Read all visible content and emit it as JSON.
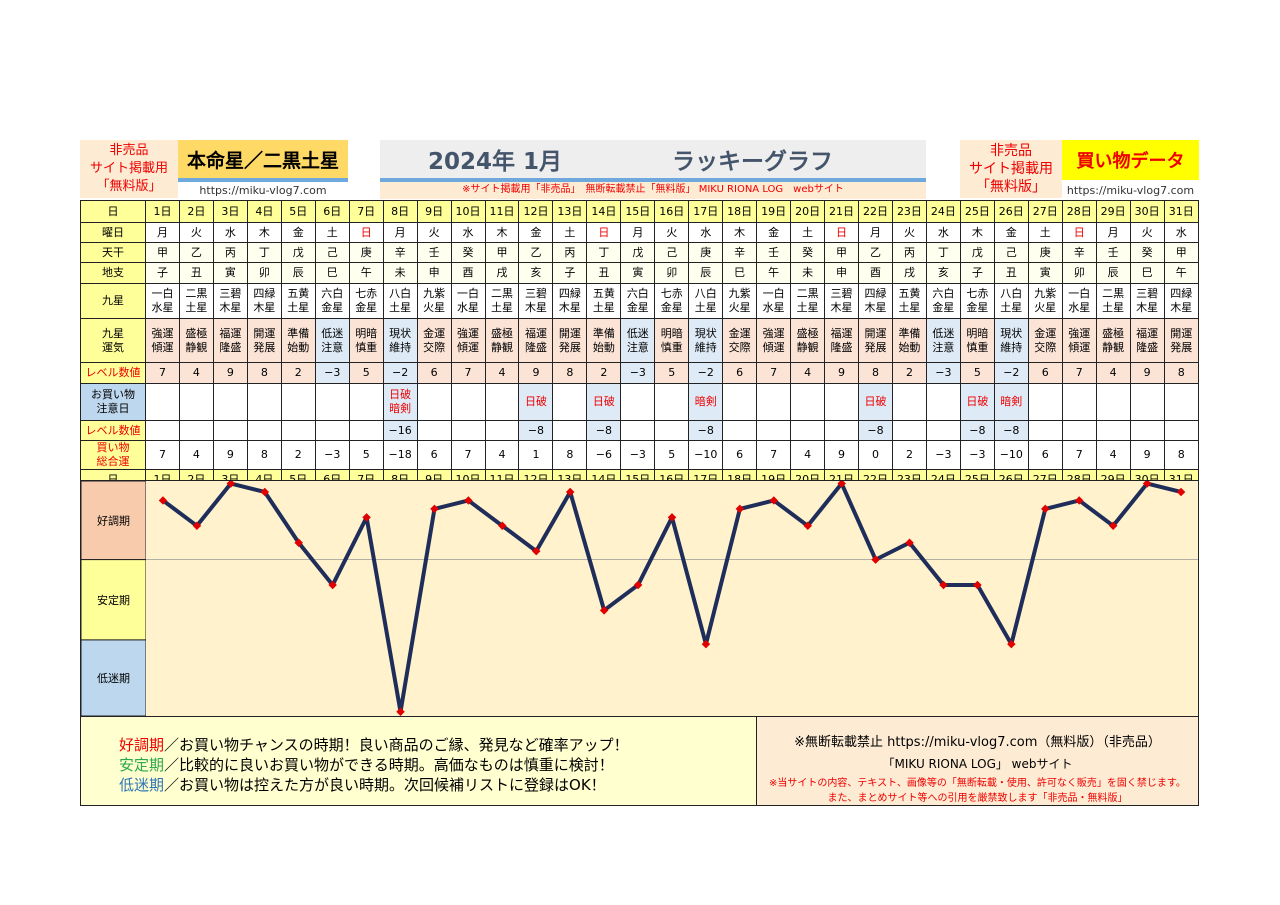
{
  "header": {
    "left_badge": [
      "非売品",
      "サイト掲載用",
      "「無料版」"
    ],
    "honmei": "本命星／二黒土星",
    "url": "https://miku-vlog7.com",
    "month": "2024年 1月",
    "graph_title": "ラッキーグラフ",
    "notice": "※サイト掲載用「非売品」　無断転載禁止「無料版」 MIKU RIONA LOG　webサイト",
    "right_badge": [
      "非売品",
      "サイト掲載用",
      "「無料版」"
    ],
    "shop_title": "買い物データ",
    "url_right": "https://miku-vlog7.com"
  },
  "labels": {
    "day": "日",
    "weekday": "曜日",
    "tenkan": "天干",
    "chishi": "地支",
    "kyusei": "九星",
    "unki": "九星\n運気",
    "level": "レベル数値",
    "caution": "お買い物\n注意日",
    "level2": "レベル数値",
    "total": "買い物\n総合運",
    "good": "好調期",
    "stable": "安定期",
    "low": "低迷期"
  },
  "days": [
    "1日",
    "2日",
    "3日",
    "4日",
    "5日",
    "6日",
    "7日",
    "8日",
    "9日",
    "10日",
    "11日",
    "12日",
    "13日",
    "14日",
    "15日",
    "16日",
    "17日",
    "18日",
    "19日",
    "20日",
    "21日",
    "22日",
    "23日",
    "24日",
    "25日",
    "26日",
    "27日",
    "28日",
    "29日",
    "30日",
    "31日"
  ],
  "weekday": [
    "月",
    "火",
    "水",
    "木",
    "金",
    "土",
    "日",
    "月",
    "火",
    "水",
    "木",
    "金",
    "土",
    "日",
    "月",
    "火",
    "水",
    "木",
    "金",
    "土",
    "日",
    "月",
    "火",
    "水",
    "木",
    "金",
    "土",
    "日",
    "月",
    "火",
    "水"
  ],
  "tenkan": [
    "甲",
    "乙",
    "丙",
    "丁",
    "戊",
    "己",
    "庚",
    "辛",
    "壬",
    "癸",
    "甲",
    "乙",
    "丙",
    "丁",
    "戊",
    "己",
    "庚",
    "辛",
    "壬",
    "癸",
    "甲",
    "乙",
    "丙",
    "丁",
    "戊",
    "己",
    "庚",
    "辛",
    "壬",
    "癸",
    "甲"
  ],
  "chishi": [
    "子",
    "丑",
    "寅",
    "卯",
    "辰",
    "巳",
    "午",
    "未",
    "申",
    "酉",
    "戌",
    "亥",
    "子",
    "丑",
    "寅",
    "卯",
    "辰",
    "巳",
    "午",
    "未",
    "申",
    "酉",
    "戌",
    "亥",
    "子",
    "丑",
    "寅",
    "卯",
    "辰",
    "巳",
    "午"
  ],
  "kyusei": [
    "一白\n水星",
    "二黒\n土星",
    "三碧\n木星",
    "四緑\n木星",
    "五黄\n土星",
    "六白\n金星",
    "七赤\n金星",
    "八白\n土星",
    "九紫\n火星",
    "一白\n水星",
    "二黒\n土星",
    "三碧\n木星",
    "四緑\n木星",
    "五黄\n土星",
    "六白\n金星",
    "七赤\n金星",
    "八白\n土星",
    "九紫\n火星",
    "一白\n水星",
    "二黒\n土星",
    "三碧\n木星",
    "四緑\n木星",
    "五黄\n土星",
    "六白\n金星",
    "七赤\n金星",
    "八白\n土星",
    "九紫\n火星",
    "一白\n水星",
    "二黒\n土星",
    "三碧\n木星",
    "四緑\n木星"
  ],
  "unki": [
    "強運\n傾運",
    "盛極\n静観",
    "福運\n隆盛",
    "開運\n発展",
    "準備\n始動",
    "低迷\n注意",
    "明暗\n慎重",
    "現状\n維持",
    "金運\n交際",
    "強運\n傾運",
    "盛極\n静観",
    "福運\n隆盛",
    "開運\n発展",
    "準備\n始動",
    "低迷\n注意",
    "明暗\n慎重",
    "現状\n維持",
    "金運\n交際",
    "強運\n傾運",
    "盛極\n静観",
    "福運\n隆盛",
    "開運\n発展",
    "準備\n始動",
    "低迷\n注意",
    "明暗\n慎重",
    "現状\n維持",
    "金運\n交際",
    "強運\n傾運",
    "盛極\n静観",
    "福運\n隆盛",
    "開運\n発展"
  ],
  "level": [
    "7",
    "4",
    "9",
    "8",
    "2",
    "−3",
    "5",
    "−2",
    "6",
    "7",
    "4",
    "9",
    "8",
    "2",
    "−3",
    "5",
    "−2",
    "6",
    "7",
    "4",
    "9",
    "8",
    "2",
    "−3",
    "5",
    "−2",
    "6",
    "7",
    "4",
    "9",
    "8"
  ],
  "caution": [
    "",
    "",
    "",
    "",
    "",
    "",
    "",
    "日破\n暗剣",
    "",
    "",
    "",
    "日破",
    "",
    "日破",
    "",
    "",
    "暗剣",
    "",
    "",
    "",
    "",
    "日破",
    "",
    "",
    "日破",
    "暗剣",
    "",
    "",
    "",
    "",
    ""
  ],
  "caution_level": [
    "",
    "",
    "",
    "",
    "",
    "",
    "",
    "−16",
    "",
    "",
    "",
    "−8",
    "",
    "−8",
    "",
    "",
    "−8",
    "",
    "",
    "",
    "",
    "−8",
    "",
    "",
    "−8",
    "−8",
    "",
    "",
    "",
    "",
    ""
  ],
  "total": [
    "7",
    "4",
    "9",
    "8",
    "2",
    "−3",
    "5",
    "−18",
    "6",
    "7",
    "4",
    "1",
    "8",
    "−6",
    "−3",
    "5",
    "−10",
    "6",
    "7",
    "4",
    "9",
    "0",
    "2",
    "−3",
    "−3",
    "−10",
    "6",
    "7",
    "4",
    "9",
    "8"
  ],
  "chart_data": {
    "type": "line",
    "x": [
      1,
      2,
      3,
      4,
      5,
      6,
      7,
      8,
      9,
      10,
      11,
      12,
      13,
      14,
      15,
      16,
      17,
      18,
      19,
      20,
      21,
      22,
      23,
      24,
      25,
      26,
      27,
      28,
      29,
      30,
      31
    ],
    "values": [
      7,
      4,
      9,
      8,
      2,
      -3,
      5,
      -18,
      6,
      7,
      4,
      1,
      8,
      -6,
      -3,
      5,
      -10,
      6,
      7,
      4,
      9,
      0,
      2,
      -3,
      -3,
      -10,
      6,
      7,
      4,
      9,
      8
    ],
    "ylim": [
      -18.5,
      9.3
    ],
    "bands": [
      "好調期",
      "安定期",
      "低迷期"
    ],
    "line_color": "#1f2d5a",
    "marker_color": "#e00000"
  },
  "footer": {
    "good_label": "好調期",
    "good_text": "／お買い物チャンスの時期！良い商品のご縁、発見など確率アップ！",
    "stable_label": "安定期",
    "stable_text": "／比較的に良いお買い物ができる時期。高価なものは慎重に検討！",
    "low_label": "低迷期",
    "low_text": "／お買い物は控えた方が良い時期。次回候補リストに登録はOK！",
    "copy1": "※無断転載禁止  https://miku-vlog7.com（無料版）（非売品）",
    "copy2": "「MIKU RIONA LOG」 webサイト",
    "copy3": "※当サイトの内容、テキスト、画像等の「無断転載・使用、許可なく販売」を固く禁じます。",
    "copy4": "また、まとめサイト等への引用を厳禁致します「非売品・無料版」"
  },
  "colors": {
    "good": "#f8cbad",
    "stable": "#ffff99",
    "low": "#bdd7ee",
    "red": "#e00000"
  }
}
